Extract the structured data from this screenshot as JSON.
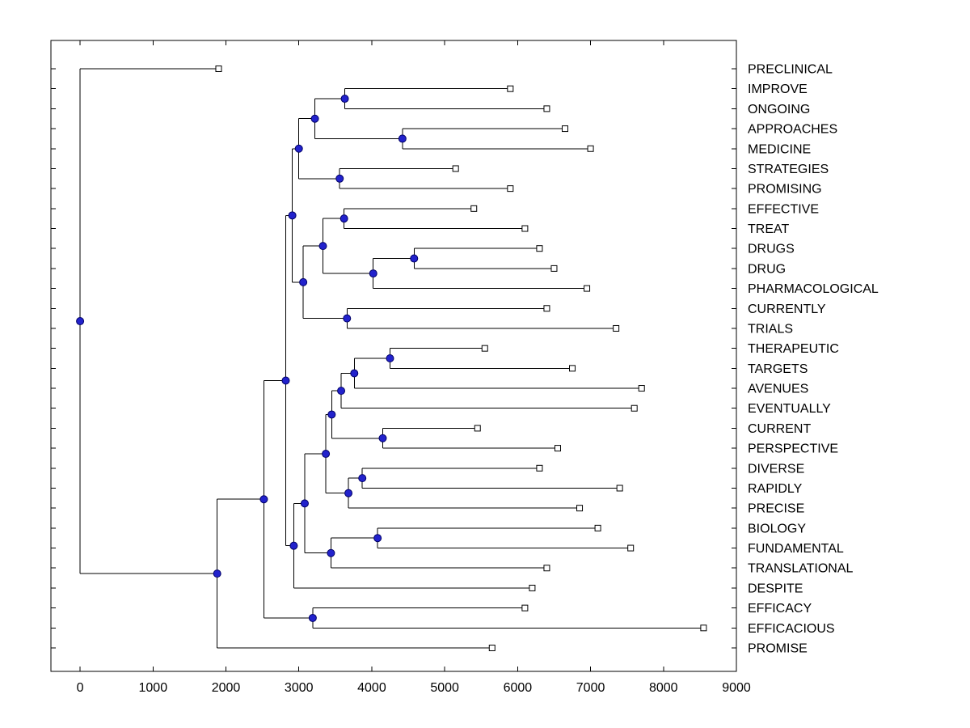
{
  "chart_data": {
    "type": "dendrogram",
    "orientation": "right",
    "title": "",
    "xlabel": "",
    "ylabel": "",
    "grid": false,
    "xlim": [
      -400,
      9000
    ],
    "x_ticks": [
      0,
      1000,
      2000,
      3000,
      4000,
      5000,
      6000,
      7000,
      8000,
      9000
    ],
    "colors": {
      "background": "#ffffff",
      "line": "#000000",
      "text": "#000000",
      "node_fill": "#2222cc",
      "node_edge": "#000066",
      "leaf_fill": "#ffffff",
      "leaf_edge": "#000000"
    },
    "leaves": [
      {
        "label": "PRECLINICAL",
        "tip": 1900
      },
      {
        "label": "IMPROVE",
        "tip": 5900
      },
      {
        "label": "ONGOING",
        "tip": 6400
      },
      {
        "label": "APPROACHES",
        "tip": 6650
      },
      {
        "label": "MEDICINE",
        "tip": 7000
      },
      {
        "label": "STRATEGIES",
        "tip": 5150
      },
      {
        "label": "PROMISING",
        "tip": 5900
      },
      {
        "label": "EFFECTIVE",
        "tip": 5400
      },
      {
        "label": "TREAT",
        "tip": 6100
      },
      {
        "label": "DRUGS",
        "tip": 6300
      },
      {
        "label": "DRUG",
        "tip": 6500
      },
      {
        "label": "PHARMACOLOGICAL",
        "tip": 6950
      },
      {
        "label": "CURRENTLY",
        "tip": 6400
      },
      {
        "label": "TRIALS",
        "tip": 7350
      },
      {
        "label": "THERAPEUTIC",
        "tip": 5550
      },
      {
        "label": "TARGETS",
        "tip": 6750
      },
      {
        "label": "AVENUES",
        "tip": 7700
      },
      {
        "label": "EVENTUALLY",
        "tip": 7600
      },
      {
        "label": "CURRENT",
        "tip": 5450
      },
      {
        "label": "PERSPECTIVE",
        "tip": 6550
      },
      {
        "label": "DIVERSE",
        "tip": 6300
      },
      {
        "label": "RAPIDLY",
        "tip": 7400
      },
      {
        "label": "PRECISE",
        "tip": 6850
      },
      {
        "label": "BIOLOGY",
        "tip": 7100
      },
      {
        "label": "FUNDAMENTAL",
        "tip": 7550
      },
      {
        "label": "TRANSLATIONAL",
        "tip": 6400
      },
      {
        "label": "DESPITE",
        "tip": 6200
      },
      {
        "label": "EFFICACY",
        "tip": 6100
      },
      {
        "label": "EFFICACIOUS",
        "tip": 8550
      },
      {
        "label": "PROMISE",
        "tip": 5650
      }
    ],
    "merges": [
      {
        "children": [
          "L1",
          "L2"
        ],
        "value": 3630
      },
      {
        "children": [
          "L3",
          "L4"
        ],
        "value": 4420
      },
      {
        "children": [
          "M0",
          "M1"
        ],
        "value": 3220
      },
      {
        "children": [
          "L5",
          "L6"
        ],
        "value": 3560
      },
      {
        "children": [
          "M2",
          "M3"
        ],
        "value": 3000
      },
      {
        "children": [
          "L7",
          "L8"
        ],
        "value": 3620
      },
      {
        "children": [
          "L9",
          "L10"
        ],
        "value": 4580
      },
      {
        "children": [
          "M6",
          "L11"
        ],
        "value": 4020
      },
      {
        "children": [
          "M5",
          "M7"
        ],
        "value": 3330
      },
      {
        "children": [
          "L12",
          "L13"
        ],
        "value": 3660
      },
      {
        "children": [
          "M8",
          "M9"
        ],
        "value": 3060
      },
      {
        "children": [
          "M4",
          "M10"
        ],
        "value": 2910
      },
      {
        "children": [
          "L14",
          "L15"
        ],
        "value": 4250
      },
      {
        "children": [
          "M12",
          "L16"
        ],
        "value": 3760
      },
      {
        "children": [
          "M13",
          "L17"
        ],
        "value": 3580
      },
      {
        "children": [
          "L18",
          "L19"
        ],
        "value": 4150
      },
      {
        "children": [
          "M14",
          "M15"
        ],
        "value": 3450
      },
      {
        "children": [
          "L20",
          "L21"
        ],
        "value": 3870
      },
      {
        "children": [
          "M17",
          "L22"
        ],
        "value": 3680
      },
      {
        "children": [
          "M16",
          "M18"
        ],
        "value": 3370
      },
      {
        "children": [
          "L23",
          "L24"
        ],
        "value": 4080
      },
      {
        "children": [
          "M20",
          "L25"
        ],
        "value": 3440
      },
      {
        "children": [
          "M19",
          "M21"
        ],
        "value": 3080
      },
      {
        "children": [
          "M22",
          "L26"
        ],
        "value": 2930
      },
      {
        "children": [
          "M11",
          "M23"
        ],
        "value": 2820
      },
      {
        "children": [
          "L27",
          "L28"
        ],
        "value": 3190
      },
      {
        "children": [
          "M24",
          "M25"
        ],
        "value": 2520
      },
      {
        "children": [
          "M26",
          "L29"
        ],
        "value": 1880
      },
      {
        "children": [
          "M27",
          "L0"
        ],
        "value": 0
      }
    ]
  }
}
